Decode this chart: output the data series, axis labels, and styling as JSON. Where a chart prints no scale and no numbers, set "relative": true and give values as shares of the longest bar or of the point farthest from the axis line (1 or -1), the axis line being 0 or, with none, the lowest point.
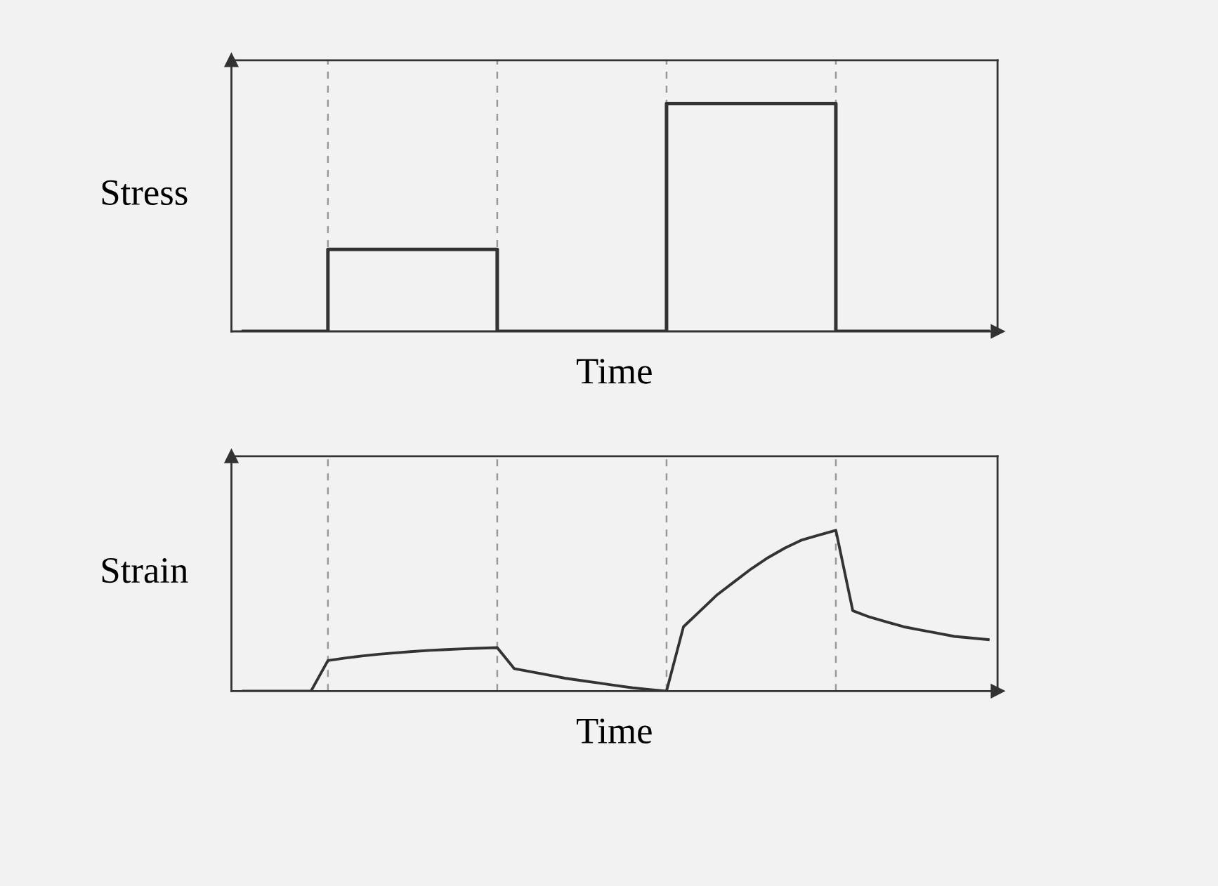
{
  "chart_data": [
    {
      "type": "step",
      "relative": true,
      "xlabel": "Time",
      "ylabel": "Stress",
      "categories": [
        null,
        null,
        null,
        null,
        null,
        null,
        null,
        null,
        null,
        null,
        null,
        null,
        null,
        null,
        null,
        null,
        null,
        null,
        null,
        null,
        null,
        null,
        null,
        null,
        null,
        null,
        null,
        null,
        null,
        null,
        null,
        null,
        null,
        null,
        null,
        null,
        null,
        null,
        null,
        null,
        null,
        null,
        null,
        null,
        null
      ],
      "series": [
        {
          "color": "#333333",
          "values": [
            0,
            0,
            0,
            0,
            0,
            0.36,
            0.36,
            0.36,
            0.36,
            0.36,
            0.36,
            0.36,
            0.36,
            0.36,
            0.36,
            0,
            0,
            0,
            0,
            0,
            0,
            0,
            0,
            0,
            0,
            1,
            1,
            1,
            1,
            1,
            1,
            1,
            1,
            1,
            1,
            0,
            0,
            0,
            0,
            0,
            0,
            0,
            0,
            0,
            0
          ]
        }
      ],
      "grid": "x"
    },
    {
      "type": "line",
      "relative": true,
      "xlabel": "Time",
      "ylabel": "Strain",
      "categories": [
        null,
        null,
        null,
        null,
        null,
        null,
        null,
        null,
        null,
        null,
        null,
        null,
        null,
        null,
        null,
        null,
        null,
        null,
        null,
        null,
        null,
        null,
        null,
        null,
        null,
        null,
        null,
        null,
        null,
        null,
        null,
        null,
        null,
        null,
        null,
        null,
        null,
        null,
        null,
        null,
        null,
        null,
        null,
        null,
        null
      ],
      "series": [
        {
          "color": "#333333",
          "values": [
            0,
            0,
            0,
            0,
            0,
            0.19,
            0.205,
            0.218,
            0.229,
            0.238,
            0.246,
            0.253,
            0.258,
            0.263,
            0.267,
            0.27,
            0.14,
            0.12,
            0.1,
            0.08,
            0.065,
            0.05,
            0.035,
            0.02,
            0.01,
            0,
            0.4,
            0.5,
            0.6,
            0.68,
            0.76,
            0.83,
            0.89,
            0.94,
            0.97,
            1,
            0.5,
            0.46,
            0.43,
            0.4,
            0.38,
            0.36,
            0.34,
            0.33,
            0.32
          ]
        }
      ],
      "grid": "x"
    }
  ]
}
